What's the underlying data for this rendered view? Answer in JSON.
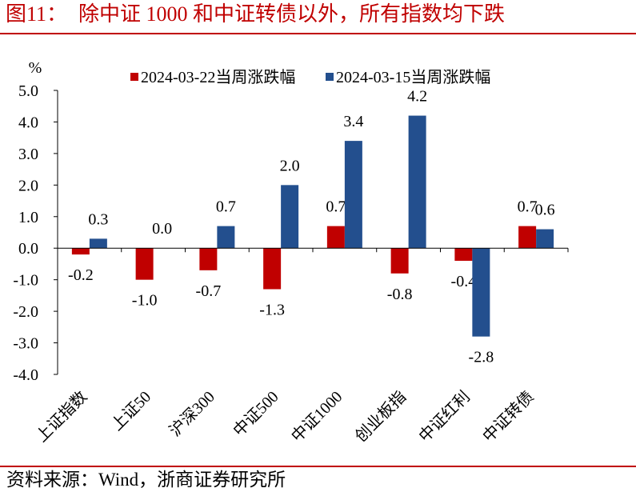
{
  "colors": {
    "title": "#C00000",
    "rule": "#C00000",
    "axis": "#000000"
  },
  "chart_data": {
    "type": "bar",
    "figure_label": "图11：",
    "title": "除中证 1000 和中证转债以外，所有指数均下跌",
    "ylabel": "%",
    "ylim": [
      -4.0,
      5.0
    ],
    "yticks": [
      "5.0",
      "4.0",
      "3.0",
      "2.0",
      "1.0",
      "0.0",
      "-1.0",
      "-2.0",
      "-3.0",
      "-4.0"
    ],
    "categories": [
      "上证指数",
      "上证50",
      "沪深300",
      "中证500",
      "中证1000",
      "创业板指",
      "中证红利",
      "中证转债"
    ],
    "series": [
      {
        "name": "2024-03-22当周涨跌幅",
        "color": "#C00000",
        "values": [
          -0.2,
          -1.0,
          -0.7,
          -1.3,
          0.7,
          -0.8,
          -0.4,
          0.7
        ]
      },
      {
        "name": "2024-03-15当周涨跌幅",
        "color": "#234F8E",
        "values": [
          0.3,
          0.0,
          0.7,
          2.0,
          3.4,
          4.2,
          -2.8,
          0.6
        ]
      }
    ],
    "data_labels": true,
    "legend_position": "top",
    "grid": false
  },
  "source": "资料来源：Wind，浙商证券研究所"
}
